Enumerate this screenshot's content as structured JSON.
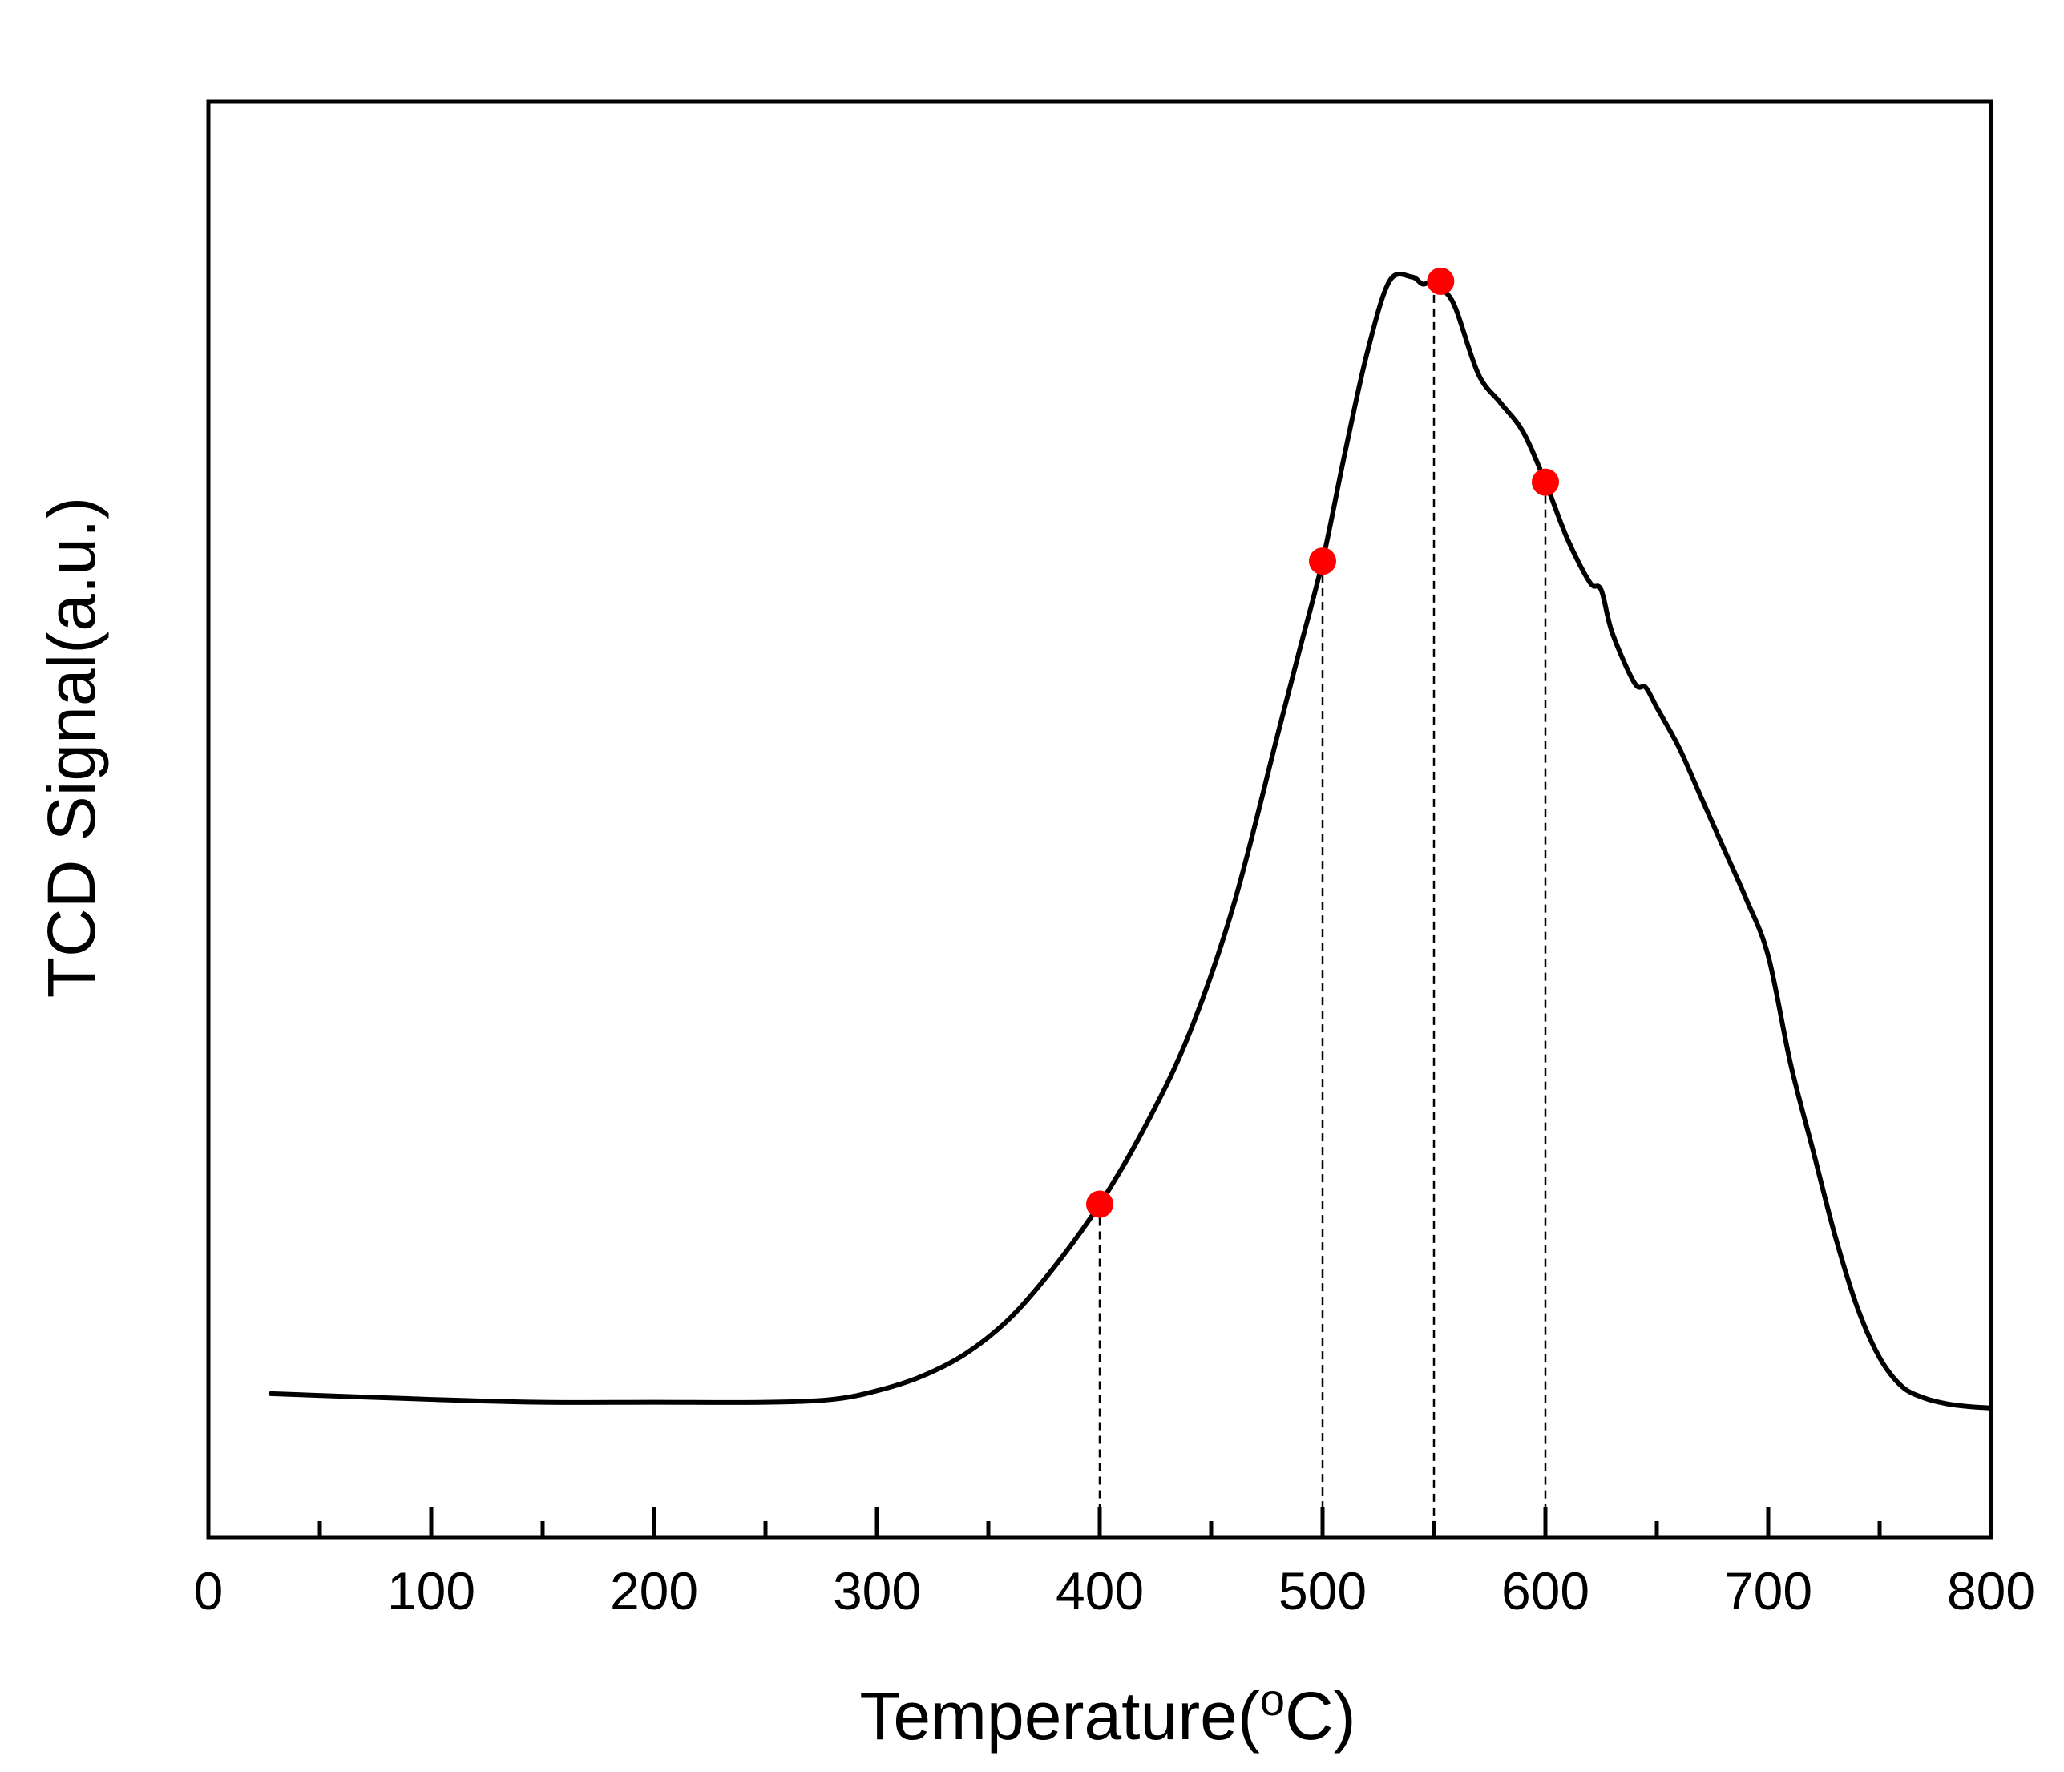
{
  "chart_data": {
    "type": "line",
    "title": "",
    "xlabel": "Temperature(",
    "xlabel_unit_sup": "o",
    "xlabel_unit": "C)",
    "ylabel": "TCD Signal(a.u.)",
    "xlim": [
      0,
      800
    ],
    "ylim": [
      0,
      100
    ],
    "x_ticks_major": [
      "0",
      "100",
      "200",
      "300",
      "400",
      "500",
      "600",
      "700",
      "800"
    ],
    "x_ticks_minor": [
      50,
      150,
      250,
      350,
      450,
      550,
      650,
      750
    ],
    "grid": false,
    "legend": "none",
    "series": [
      {
        "name": "TCD Signal",
        "color": "#000000",
        "x": [
          28,
          100,
          150,
          200,
          250,
          280,
          300,
          320,
          340,
          360,
          380,
          400,
          420,
          440,
          460,
          480,
          490,
          500,
          510,
          520,
          530,
          540,
          545,
          550,
          555,
          560,
          570,
          580,
          590,
          600,
          610,
          620,
          625,
          630,
          640,
          645,
          650,
          660,
          670,
          680,
          690,
          700,
          710,
          720,
          730,
          740,
          750,
          760,
          770,
          780,
          790,
          800
        ],
        "y": [
          10.0,
          9.6,
          9.4,
          9.4,
          9.4,
          9.6,
          10.2,
          11.2,
          12.8,
          15.3,
          18.9,
          23.2,
          28.5,
          35.0,
          44.0,
          56.0,
          62.0,
          68.0,
          75.5,
          82.5,
          87.5,
          87.8,
          87.3,
          87.5,
          86.8,
          85.5,
          81.0,
          79.0,
          77.0,
          73.5,
          69.5,
          66.5,
          66.0,
          63.0,
          59.5,
          59.2,
          57.8,
          55.0,
          51.5,
          48.0,
          44.5,
          40.5,
          33.0,
          27.0,
          21.0,
          16.0,
          12.5,
          10.5,
          9.7,
          9.3,
          9.1,
          9.0
        ]
      }
    ],
    "highlight_points": [
      {
        "x": 400,
        "y": 23.2
      },
      {
        "x": 500,
        "y": 68.0
      },
      {
        "x": 553,
        "y": 87.5
      },
      {
        "x": 600,
        "y": 73.5
      }
    ],
    "guide_lines_x": [
      400,
      500,
      550,
      600
    ],
    "colors": {
      "curve": "#000000",
      "markers": "#ff0000",
      "axes": "#000000",
      "background": "#ffffff"
    }
  }
}
